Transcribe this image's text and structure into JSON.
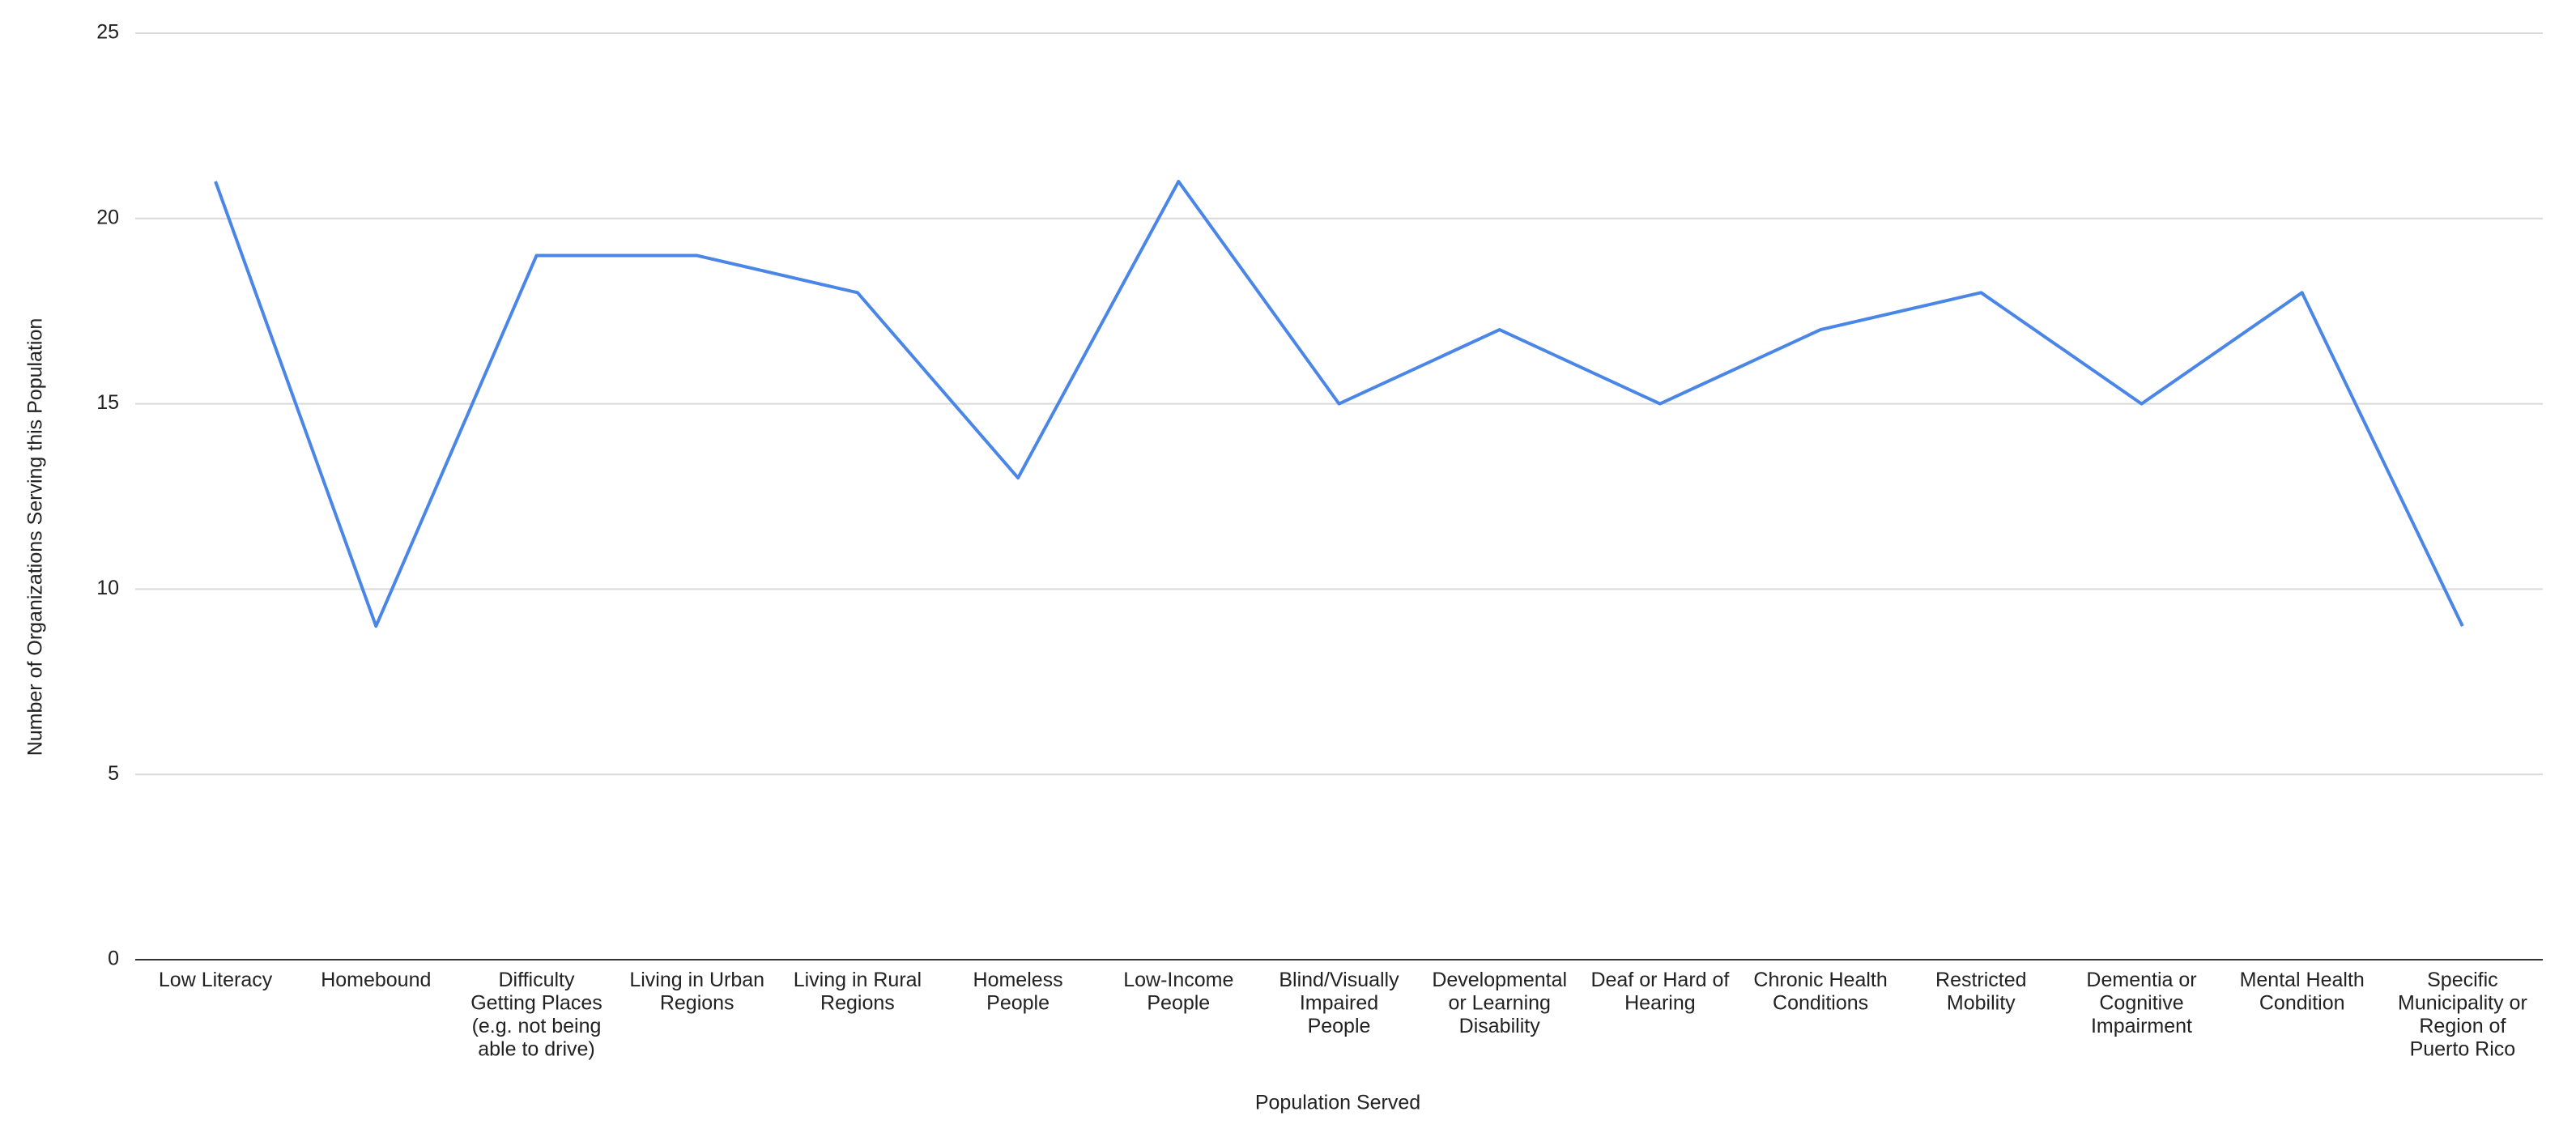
{
  "chart_data": {
    "type": "line",
    "x_label": "Population Served",
    "y_label": "Number of Organizations Serving this Population",
    "categories": [
      "Low Literacy",
      "Homebound",
      "Difficulty Getting Places (e.g. not being able to drive)",
      "Living in Urban Regions",
      "Living in Rural Regions",
      "Homeless People",
      "Low-Income People",
      "Blind/Visually Impaired People",
      "Developmental or Learning Disability",
      "Deaf or Hard of Hearing",
      "Chronic Health Conditions",
      "Restricted Mobility",
      "Dementia or Cognitive Impairment",
      "Mental Health Condition",
      "Specific Municipality or Region of Puerto Rico"
    ],
    "series": [
      {
        "name": "Number of Organizations Serving this Population",
        "color": "#4a86e8",
        "values": [
          21,
          9,
          19,
          19,
          18,
          13,
          21,
          15,
          17,
          15,
          17,
          18,
          15,
          18,
          9
        ]
      }
    ],
    "ylim": [
      0,
      25
    ],
    "yticks": [
      0,
      5,
      10,
      15,
      20,
      25
    ],
    "grid": true,
    "legend": false
  }
}
